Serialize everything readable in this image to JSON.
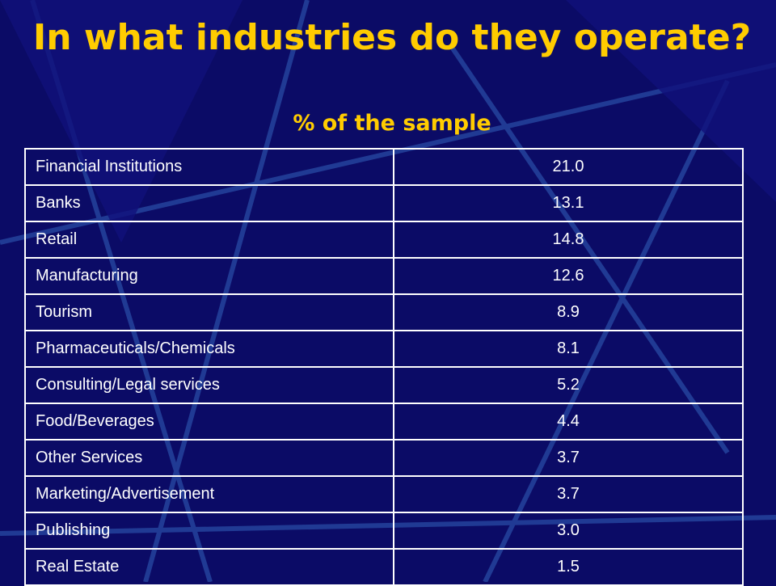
{
  "header": {
    "title": "In what industries do they operate?",
    "subtitle": "% of the sample"
  },
  "table": {
    "rows": [
      [
        "Financial Institutions",
        "21.0"
      ],
      [
        "Banks",
        "13.1"
      ],
      [
        "Retail",
        "14.8"
      ],
      [
        "Manufacturing",
        "12.6"
      ],
      [
        "Tourism",
        "8.9"
      ],
      [
        "Pharmaceuticals/Chemicals",
        "8.1"
      ],
      [
        "Consulting/Legal services",
        "5.2"
      ],
      [
        "Food/Beverages",
        "4.4"
      ],
      [
        "Other Services",
        "3.7"
      ],
      [
        "Marketing/Advertisement",
        "3.7"
      ],
      [
        "Publishing",
        "3.0"
      ],
      [
        "Real Estate",
        "1.5"
      ]
    ]
  }
}
